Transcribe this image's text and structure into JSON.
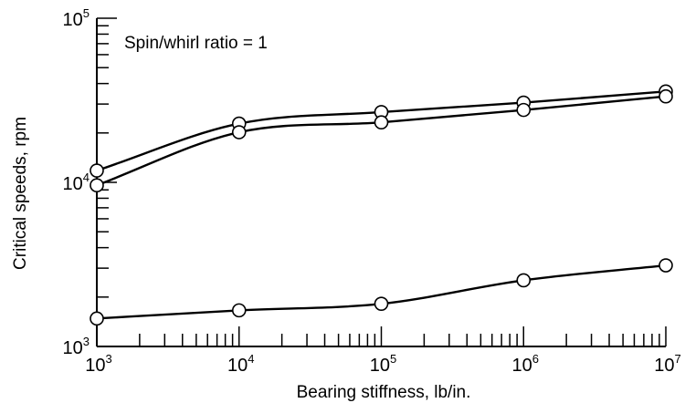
{
  "chart_data": {
    "type": "line",
    "title": "",
    "annotation": "Spin/whirl ratio = 1",
    "xlabel": "Bearing stiffness, lb/in.",
    "ylabel": "Critical speeds, rpm",
    "xscale": "log",
    "yscale": "log",
    "xlim": [
      1000,
      10000000
    ],
    "ylim": [
      1000,
      100000
    ],
    "x_ticks": [
      {
        "base": "10",
        "exp": "3",
        "value": 1000
      },
      {
        "base": "10",
        "exp": "4",
        "value": 10000
      },
      {
        "base": "10",
        "exp": "5",
        "value": 100000
      },
      {
        "base": "10",
        "exp": "6",
        "value": 1000000
      },
      {
        "base": "10",
        "exp": "7",
        "value": 10000000
      }
    ],
    "y_ticks": [
      {
        "base": "10",
        "exp": "3",
        "value": 1000
      },
      {
        "base": "10",
        "exp": "4",
        "value": 10000
      },
      {
        "base": "10",
        "exp": "5",
        "value": 100000
      }
    ],
    "grid": false,
    "legend": "none",
    "x": [
      1000,
      10000,
      100000,
      1000000,
      10000000
    ],
    "series": [
      {
        "values": [
          11800,
          22800,
          26800,
          30600,
          35800
        ]
      },
      {
        "values": [
          9600,
          20200,
          23200,
          27600,
          33400
        ]
      },
      {
        "values": [
          1480,
          1660,
          1820,
          2530,
          3120
        ]
      }
    ]
  }
}
